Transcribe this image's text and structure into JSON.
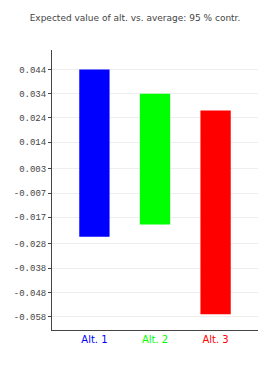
{
  "chart_data": {
    "type": "bar",
    "title": "Expected value of alt. vs. average: 95 % contr.",
    "categories": [
      "Alt. 1",
      "Alt. 2",
      "Alt. 3"
    ],
    "bottoms": [
      -0.025,
      -0.02,
      -0.057
    ],
    "tops": [
      0.044,
      0.034,
      0.027
    ],
    "colors": [
      "#0000ff",
      "#00ff00",
      "#ff0000"
    ],
    "ylim": [
      -0.0635,
      0.052
    ],
    "yticks": [
      0.044,
      0.034,
      0.024,
      0.014,
      0.003,
      -0.007,
      -0.017,
      -0.028,
      -0.038,
      -0.048,
      -0.058
    ],
    "grid": true
  }
}
